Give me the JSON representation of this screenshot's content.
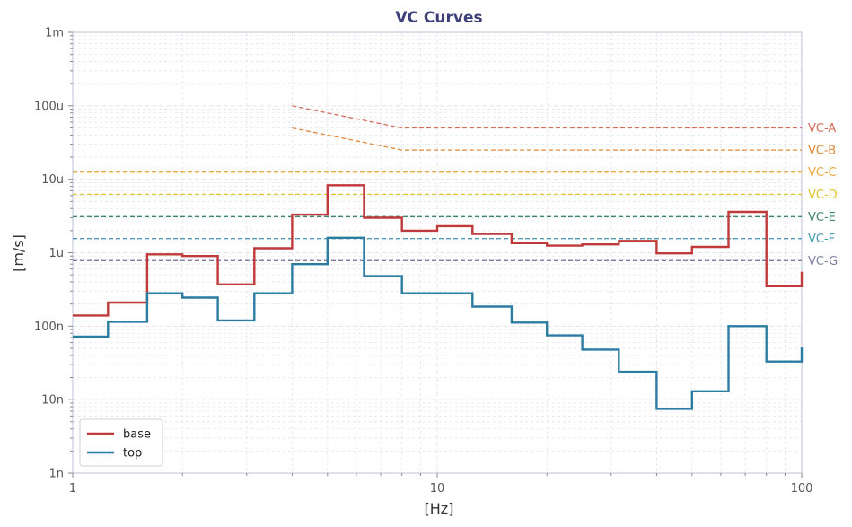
{
  "chart_data": {
    "type": "line",
    "title": "VC Curves",
    "xlabel": "[Hz]",
    "ylabel": "[m/s]",
    "xscale": "log",
    "yscale": "log",
    "xlim": [
      1,
      100
    ],
    "ylim": [
      1e-09,
      0.001
    ],
    "grid": true,
    "legend_position": "lower-left",
    "x_tick_labels": [
      "1",
      "10",
      "100"
    ],
    "y_tick_labels": [
      "1n",
      "10n",
      "100n",
      "1u",
      "10u",
      "100u",
      "1m"
    ],
    "colors": {
      "title": "#3c3f78",
      "frame": "#c7cbe0",
      "grid": "#e4e4ec"
    },
    "series": [
      {
        "name": "base",
        "color": "#c0393b",
        "x": [
          1,
          1.25,
          1.6,
          2,
          2.5,
          3.15,
          4,
          5,
          6.3,
          8,
          10,
          12.5,
          16,
          20,
          25,
          31.5,
          40,
          50,
          63,
          80,
          100
        ],
        "y": [
          1.4e-07,
          2.1e-07,
          9.5e-07,
          9e-07,
          3.7e-07,
          1.15e-06,
          3.3e-06,
          8.3e-06,
          3e-06,
          2e-06,
          2.3e-06,
          1.8e-06,
          1.35e-06,
          1.25e-06,
          1.3e-06,
          1.45e-06,
          9.8e-07,
          1.2e-06,
          3.6e-06,
          3.5e-07,
          5.5e-07
        ]
      },
      {
        "name": "top",
        "color": "#2b7ca1",
        "x": [
          1,
          1.25,
          1.6,
          2,
          2.5,
          3.15,
          4,
          5,
          6.3,
          8,
          10,
          12.5,
          16,
          20,
          25,
          31.5,
          40,
          50,
          63,
          80,
          100
        ],
        "y": [
          7.2e-08,
          1.15e-07,
          2.8e-07,
          2.45e-07,
          1.2e-07,
          2.8e-07,
          7e-07,
          1.6e-06,
          4.8e-07,
          2.8e-07,
          2.8e-07,
          1.85e-07,
          1.12e-07,
          7.5e-08,
          4.8e-08,
          2.4e-08,
          7.5e-09,
          1.3e-08,
          1e-07,
          3.3e-08,
          5.2e-08
        ]
      }
    ],
    "vc_curves": [
      {
        "label": "VC-A",
        "color": "#d86a5a",
        "x": [
          4,
          8,
          100
        ],
        "y": [
          0.0001,
          5e-05,
          5e-05
        ]
      },
      {
        "label": "VC-B",
        "color": "#e0893a",
        "x": [
          4,
          8,
          100
        ],
        "y": [
          5e-05,
          2.5e-05,
          2.5e-05
        ]
      },
      {
        "label": "VC-C",
        "color": "#eba83c",
        "x": [
          1,
          100
        ],
        "y": [
          1.25e-05,
          1.25e-05
        ]
      },
      {
        "label": "VC-D",
        "color": "#e3c532",
        "x": [
          1,
          100
        ],
        "y": [
          6.25e-06,
          6.25e-06
        ]
      },
      {
        "label": "VC-E",
        "color": "#3f8570",
        "x": [
          1,
          100
        ],
        "y": [
          3.1e-06,
          3.1e-06
        ]
      },
      {
        "label": "VC-F",
        "color": "#4a9bb3",
        "x": [
          1,
          100
        ],
        "y": [
          1.56e-06,
          1.56e-06
        ]
      },
      {
        "label": "VC-G",
        "color": "#7f7fa5",
        "x": [
          1,
          100
        ],
        "y": [
          7.8e-07,
          7.8e-07
        ]
      }
    ]
  }
}
